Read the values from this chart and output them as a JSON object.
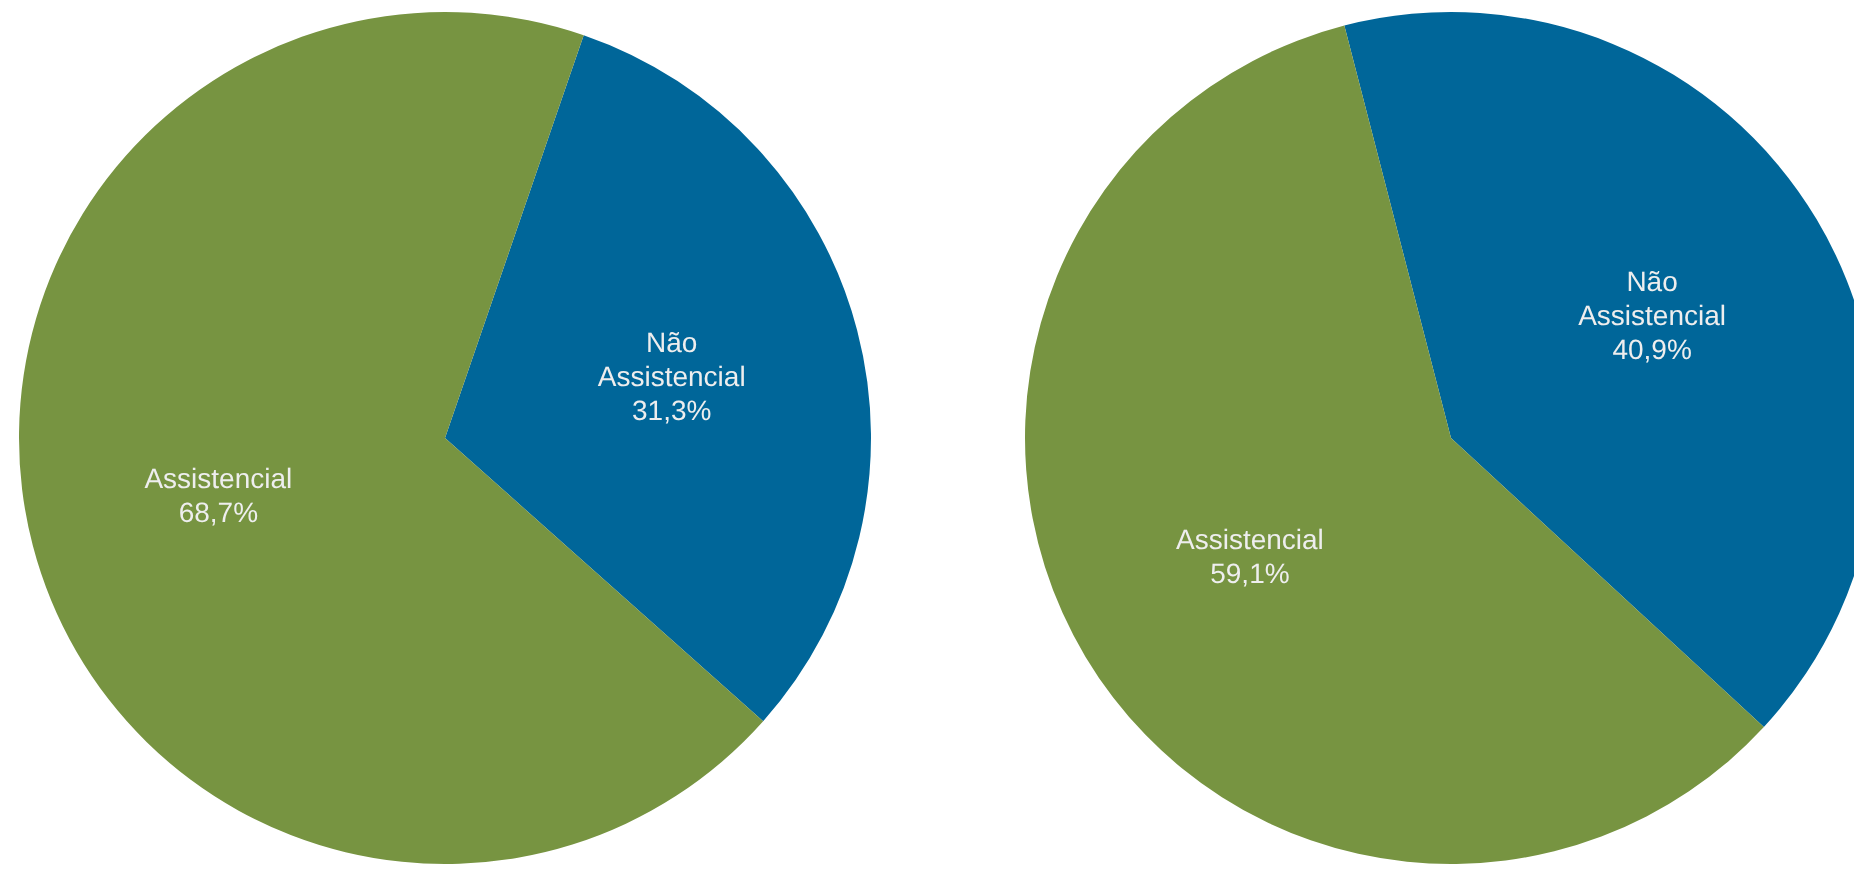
{
  "chart_data": [
    {
      "type": "pie",
      "categories": [
        "Não Assistencial",
        "Assistencial"
      ],
      "values": [
        31.3,
        68.7
      ],
      "colors": [
        "#006699",
        "#779441"
      ],
      "value_labels": [
        "31,3%",
        "68,7%"
      ],
      "legend": false
    },
    {
      "type": "pie",
      "categories": [
        "Não Assistencial",
        "Assistencial"
      ],
      "values": [
        40.9,
        59.1
      ],
      "colors": [
        "#006699",
        "#779441"
      ],
      "value_labels": [
        "40,9%",
        "59,1%"
      ],
      "legend": false
    }
  ]
}
